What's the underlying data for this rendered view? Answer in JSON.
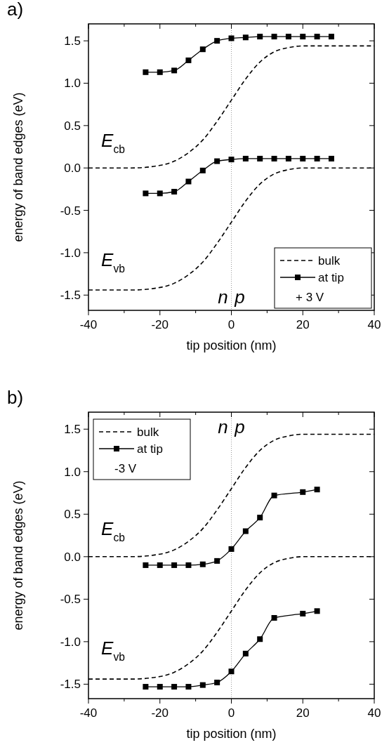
{
  "chart_data": [
    {
      "type": "line",
      "title": "a)",
      "xlabel": "tip position (nm)",
      "ylabel": "energy of band edges (eV)",
      "xlim": [
        -40,
        40
      ],
      "ylim": [
        -1.68,
        1.7
      ],
      "xticks": [
        -40,
        {
          "value": -30,
          "label": null
        },
        -20,
        {
          "value": -10,
          "label": null
        },
        0,
        {
          "value": 10,
          "label": null
        },
        20,
        {
          "value": 30,
          "label": null
        },
        40
      ],
      "yticks": [
        -1.5,
        {
          "value": -1,
          "label": "-1.0"
        },
        -0.5,
        {
          "value": 0,
          "label": "0.0"
        },
        0.5,
        {
          "value": 1,
          "label": "1.0"
        },
        1.5
      ],
      "legend": "bottom right",
      "ref_lines": [
        {
          "axis": "x",
          "value": 0,
          "color": "#999999",
          "line_style": "dotted"
        }
      ],
      "series": [
        {
          "name": "bulk",
          "color": "#000000",
          "line_style": "dashed",
          "marker": "none",
          "x": [
            -40,
            -28,
            -20,
            -16,
            -12,
            -8,
            -4,
            0,
            4,
            8,
            12,
            16,
            20,
            40
          ],
          "values": [
            0,
            0,
            0.03,
            0.08,
            0.18,
            0.33,
            0.55,
            0.8,
            1.05,
            1.25,
            1.37,
            1.42,
            1.44,
            1.44
          ]
        },
        {
          "color": "#000000",
          "line_style": "dashed",
          "marker": "none",
          "x": [
            -40,
            -28,
            -20,
            -16,
            -12,
            -8,
            -4,
            0,
            4,
            8,
            12,
            16,
            20,
            40
          ],
          "values": [
            -1.44,
            -1.44,
            -1.41,
            -1.36,
            -1.26,
            -1.11,
            -0.89,
            -0.64,
            -0.39,
            -0.19,
            -0.07,
            -0.02,
            0,
            0
          ]
        },
        {
          "name": "at tip",
          "color": "#000000",
          "line_style": "solid",
          "marker": "square",
          "x": [
            -24,
            -20,
            -16,
            -12,
            -8,
            -4,
            0,
            4,
            8,
            12,
            16,
            20,
            24,
            28
          ],
          "values": [
            1.13,
            1.13,
            1.15,
            1.27,
            1.4,
            1.5,
            1.53,
            1.54,
            1.55,
            1.55,
            1.55,
            1.55,
            1.55,
            1.55
          ]
        },
        {
          "color": "#000000",
          "line_style": "solid",
          "marker": "square",
          "x": [
            -24,
            -20,
            -16,
            -12,
            -8,
            -4,
            0,
            4,
            8,
            12,
            16,
            20,
            24,
            28
          ],
          "values": [
            -0.3,
            -0.3,
            -0.28,
            -0.16,
            -0.03,
            0.08,
            0.1,
            0.11,
            0.11,
            0.11,
            0.11,
            0.11,
            0.11,
            0.11
          ]
        }
      ],
      "annotations": [
        "E$_{cb}$",
        "E$_{vb}$",
        "n",
        "p",
        "+ 3 V"
      ]
    },
    {
      "type": "line",
      "title": "b)",
      "xlabel": "tip position (nm)",
      "ylabel": "energy of band edges (eV)",
      "xlim": [
        -40,
        40
      ],
      "ylim": [
        -1.67,
        1.7
      ],
      "xticks": [
        -40,
        {
          "value": -30,
          "label": null
        },
        -20,
        {
          "value": -10,
          "label": null
        },
        0,
        {
          "value": 10,
          "label": null
        },
        20,
        {
          "value": 30,
          "label": null
        },
        40
      ],
      "yticks": [
        -1.5,
        {
          "value": -1,
          "label": "-1.0"
        },
        -0.5,
        {
          "value": 0,
          "label": "0.0"
        },
        0.5,
        {
          "value": 1,
          "label": "1.0"
        },
        1.5
      ],
      "legend": "top left",
      "ref_lines": [
        {
          "axis": "x",
          "value": 0,
          "color": "#999999",
          "line_style": "dotted"
        }
      ],
      "series": [
        {
          "name": "bulk",
          "color": "#000000",
          "line_style": "dashed",
          "marker": "none",
          "x": [
            -40,
            -28,
            -20,
            -16,
            -12,
            -8,
            -4,
            0,
            4,
            8,
            12,
            16,
            20,
            40
          ],
          "values": [
            0,
            0,
            0.03,
            0.08,
            0.18,
            0.33,
            0.55,
            0.8,
            1.05,
            1.25,
            1.37,
            1.42,
            1.44,
            1.44
          ]
        },
        {
          "color": "#000000",
          "line_style": "dashed",
          "marker": "none",
          "x": [
            -40,
            -28,
            -20,
            -16,
            -12,
            -8,
            -4,
            0,
            4,
            8,
            12,
            16,
            20,
            40
          ],
          "values": [
            -1.44,
            -1.44,
            -1.41,
            -1.36,
            -1.26,
            -1.11,
            -0.89,
            -0.64,
            -0.39,
            -0.19,
            -0.07,
            -0.02,
            0,
            0
          ]
        },
        {
          "name": "at tip",
          "color": "#000000",
          "line_style": "solid",
          "marker": "square",
          "x": [
            -24,
            -20,
            -16,
            -12,
            -8,
            -4,
            0,
            4,
            8,
            12,
            20,
            24
          ],
          "values": [
            -0.1,
            -0.1,
            -0.1,
            -0.1,
            -0.09,
            -0.05,
            0.09,
            0.3,
            0.46,
            0.72,
            0.76,
            0.79
          ]
        },
        {
          "color": "#000000",
          "line_style": "solid",
          "marker": "square",
          "x": [
            -24,
            -20,
            -16,
            -12,
            -8,
            -4,
            0,
            4,
            8,
            12,
            20,
            24
          ],
          "values": [
            -1.53,
            -1.53,
            -1.53,
            -1.53,
            -1.51,
            -1.48,
            -1.35,
            -1.14,
            -0.97,
            -0.72,
            -0.67,
            -0.64
          ]
        }
      ],
      "annotations": [
        "E$_{cb}$",
        "E$_{vb}$",
        "n",
        "p",
        "-3 V"
      ]
    }
  ]
}
